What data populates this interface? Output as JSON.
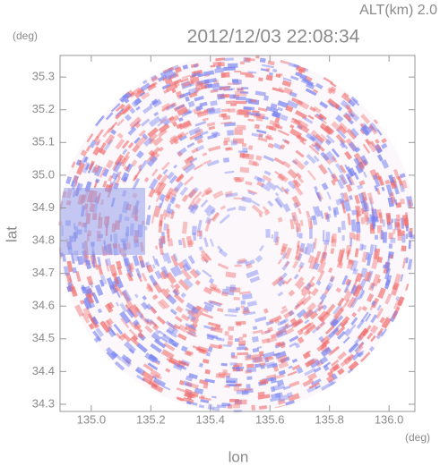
{
  "chart_data": {
    "type": "image",
    "title": "2012/12/03 22:08:34",
    "subtitle": "ALT(km)  2.0",
    "y_unit": "(deg)",
    "x_unit": "(deg)",
    "xlabel": "lon",
    "ylabel": "lat",
    "xlim": [
      134.895,
      136.087
    ],
    "ylim": [
      34.278,
      35.366
    ],
    "xticks": [
      {
        "value": 135,
        "label": "135.0"
      },
      135.2,
      135.4,
      135.6,
      135.8,
      {
        "value": 136,
        "label": "136.0"
      }
    ],
    "yticks": [
      34.3,
      34.4,
      34.5,
      34.6,
      34.7,
      34.8,
      34.9,
      {
        "value": 35,
        "label": "35.0"
      },
      35.1,
      35.2,
      35.3
    ]
  }
}
